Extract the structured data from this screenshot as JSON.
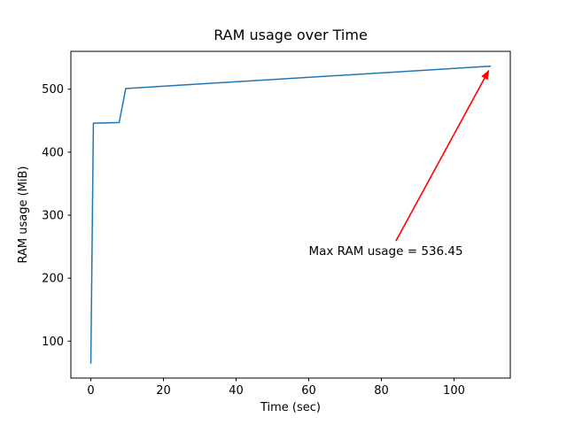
{
  "chart_data": {
    "type": "line",
    "title": "RAM usage over Time",
    "xlabel": "Time (sec)",
    "ylabel": "RAM usage (MiB)",
    "xlim": [
      -5.5,
      115.5
    ],
    "ylim": [
      41.4,
      560.0
    ],
    "xticks": [
      0,
      20,
      40,
      60,
      80,
      100
    ],
    "yticks": [
      100,
      200,
      300,
      400,
      500
    ],
    "grid": false,
    "legend": null,
    "series": [
      {
        "name": "RAM usage",
        "color": "#1f77b4",
        "line_width": 1.5,
        "x": [
          0,
          0.7,
          7.8,
          9.6,
          110
        ],
        "y": [
          65,
          446,
          447,
          501,
          536.45
        ]
      }
    ],
    "annotation": {
      "text": "Max RAM usage = 536.45",
      "color": "#ff0000",
      "max_value": 536.45,
      "text_xy": [
        60,
        237
      ],
      "arrow_start_xy": [
        84,
        259
      ],
      "arrow_end_xy": [
        109.7,
        531
      ]
    },
    "frame_color": "#000000"
  }
}
